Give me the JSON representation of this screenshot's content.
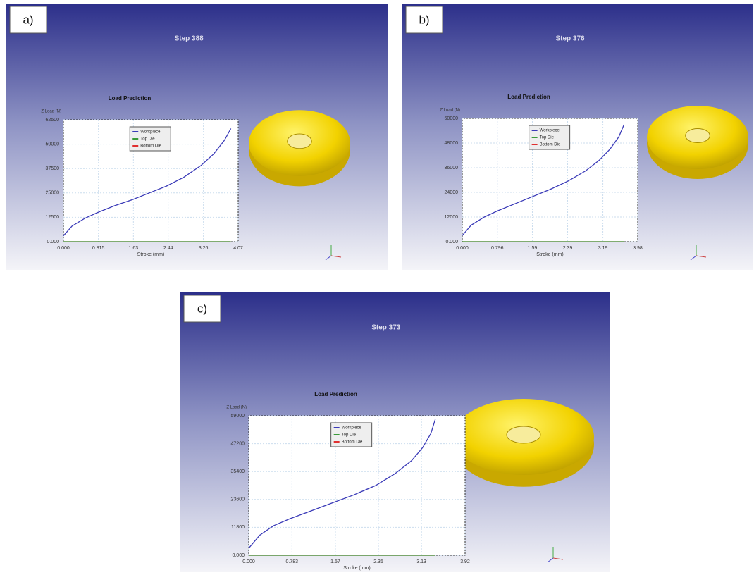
{
  "chart_data": [
    {
      "type": "line",
      "panel": "a)",
      "step": "Step 388",
      "title": "Load Prediction",
      "ylabel": "Z Load (N)",
      "xlabel": "Stroke (mm)",
      "x": [
        0,
        0.2,
        0.5,
        0.8,
        1.2,
        1.6,
        2.0,
        2.4,
        2.8,
        3.2,
        3.5,
        3.75,
        3.9
      ],
      "series": [
        {
          "name": "Workpiece",
          "color": "#3b3bb8",
          "values": [
            3000,
            8000,
            12000,
            15000,
            18500,
            21500,
            25000,
            28500,
            33000,
            39000,
            45000,
            52000,
            58000
          ]
        },
        {
          "name": "Top Die",
          "color": "#3a9a3a",
          "values": [
            0,
            0,
            0,
            0,
            0,
            0,
            0,
            0,
            0,
            0,
            0,
            0,
            0
          ]
        },
        {
          "name": "Bottom Die",
          "color": "#e03030",
          "values": [
            0,
            0,
            0,
            0,
            0,
            0,
            0,
            0,
            0,
            0,
            0,
            0,
            0
          ]
        }
      ],
      "xlim": [
        0,
        4.07
      ],
      "xticks": [
        {
          "value": 0,
          "label": "0.000"
        },
        0.815,
        1.63,
        2.44,
        3.26,
        4.07
      ],
      "ylim": [
        0,
        62500
      ],
      "yticks": [
        {
          "value": 0,
          "label": "0.000"
        },
        12500,
        25000,
        37500,
        50000,
        62500
      ],
      "grid": true
    },
    {
      "type": "line",
      "panel": "b)",
      "step": "Step 376",
      "title": "Load Prediction",
      "ylabel": "Z Load (N)",
      "xlabel": "Stroke (mm)",
      "x": [
        0,
        0.2,
        0.5,
        0.8,
        1.2,
        1.6,
        2.0,
        2.4,
        2.8,
        3.1,
        3.35,
        3.55,
        3.67
      ],
      "series": [
        {
          "name": "Workpiece",
          "color": "#3b3bb8",
          "values": [
            3000,
            8000,
            12000,
            15000,
            18500,
            22000,
            25500,
            29500,
            34500,
            39500,
            45000,
            51000,
            57000
          ]
        },
        {
          "name": "Top Die",
          "color": "#3a9a3a",
          "values": [
            0,
            0,
            0,
            0,
            0,
            0,
            0,
            0,
            0,
            0,
            0,
            0,
            0
          ]
        },
        {
          "name": "Bottom Die",
          "color": "#e03030",
          "values": [
            0,
            0,
            0,
            0,
            0,
            0,
            0,
            0,
            0,
            0,
            0,
            0,
            0
          ]
        }
      ],
      "xlim": [
        0,
        3.98
      ],
      "xticks": [
        {
          "value": 0,
          "label": "0.000"
        },
        0.796,
        1.59,
        2.39,
        3.19,
        3.98
      ],
      "ylim": [
        0,
        60000
      ],
      "yticks": [
        {
          "value": 0,
          "label": "0.000"
        },
        12000,
        24000,
        36000,
        48000,
        60000
      ],
      "grid": true
    },
    {
      "type": "line",
      "panel": "c)",
      "step": "Step 373",
      "title": "Load Prediction",
      "ylabel": "Z Load (N)",
      "xlabel": "Stroke (mm)",
      "x": [
        0,
        0.2,
        0.45,
        0.75,
        1.1,
        1.5,
        1.9,
        2.3,
        2.65,
        2.95,
        3.15,
        3.3,
        3.38
      ],
      "series": [
        {
          "name": "Workpiece",
          "color": "#3b3bb8",
          "values": [
            3000,
            8500,
            12500,
            15500,
            18500,
            22000,
            25500,
            29500,
            34500,
            40000,
            45500,
            51500,
            57500
          ]
        },
        {
          "name": "Top Die",
          "color": "#3a9a3a",
          "values": [
            0,
            0,
            0,
            0,
            0,
            0,
            0,
            0,
            0,
            0,
            0,
            0,
            0
          ]
        },
        {
          "name": "Bottom Die",
          "color": "#e03030",
          "values": [
            0,
            0,
            0,
            0,
            0,
            0,
            0,
            0,
            0,
            0,
            0,
            0,
            0
          ]
        }
      ],
      "xlim": [
        0,
        3.92
      ],
      "xticks": [
        {
          "value": 0,
          "label": "0.000"
        },
        0.783,
        1.57,
        2.35,
        3.13,
        3.92
      ],
      "ylim": [
        0,
        59000
      ],
      "yticks": [
        {
          "value": 0,
          "label": "0.000"
        },
        11800,
        23600,
        35400,
        47200,
        59000
      ],
      "grid": true
    }
  ]
}
